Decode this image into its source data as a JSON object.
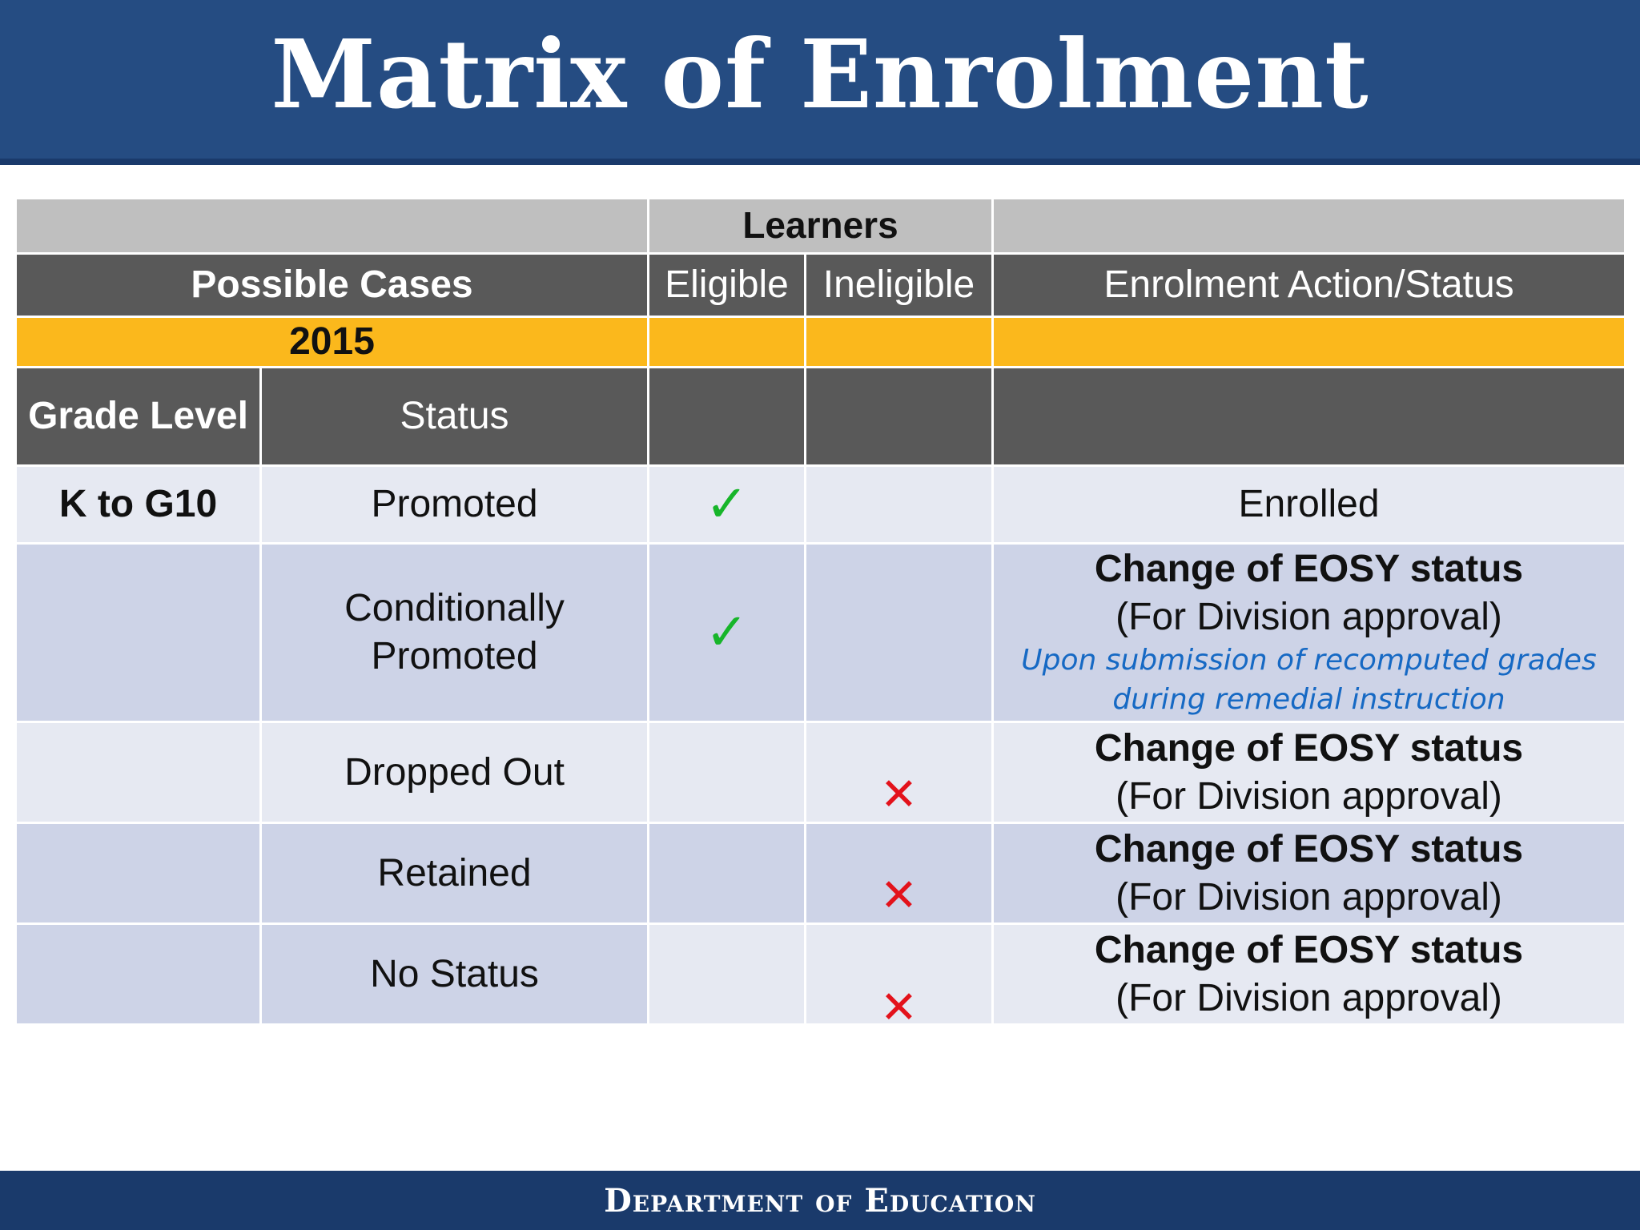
{
  "title": "Matrix of Enrolment",
  "table": {
    "group_header": "Learners",
    "headers": {
      "possible_cases": "Possible Cases",
      "eligible": "Eligible",
      "ineligible": "Ineligible",
      "action": "Enrolment Action/Status"
    },
    "year": "2015",
    "sub_headers": {
      "grade_level": "Grade Level",
      "status": "Status"
    },
    "rows": [
      {
        "grade": "K to G10",
        "status": "Promoted",
        "eligible": true,
        "ineligible": false,
        "action": "Enrolled"
      },
      {
        "grade": "",
        "status": "Conditionally Promoted",
        "eligible": true,
        "ineligible": false,
        "action_bold": "Change of EOSY status",
        "action": "(For Division approval)",
        "note": "Upon submission of recomputed grades during remedial instruction"
      },
      {
        "grade": "",
        "status": "Dropped Out",
        "eligible": false,
        "ineligible": true,
        "action_bold": "Change of EOSY status",
        "action": "(For Division approval)"
      },
      {
        "grade": "",
        "status": "Retained",
        "eligible": false,
        "ineligible": true,
        "action_bold": "Change of EOSY status",
        "action": "(For Division approval)"
      },
      {
        "grade": "",
        "status": "No Status",
        "eligible": false,
        "ineligible": true,
        "action_bold": "Change of EOSY status",
        "action": "(For Division approval)"
      }
    ]
  },
  "marks": {
    "check": "✓",
    "cross": "✕"
  },
  "colors": {
    "title_bar": "#254c82",
    "header_gray": "#595959",
    "group_gray": "#bfbfbf",
    "year_orange": "#fbb81c",
    "row_light": "#e6e9f2",
    "row_dark": "#cdd3e7",
    "check_green": "#17b52a",
    "cross_red": "#e3121b",
    "note_blue": "#1669c4"
  },
  "footer": "Department of Education"
}
